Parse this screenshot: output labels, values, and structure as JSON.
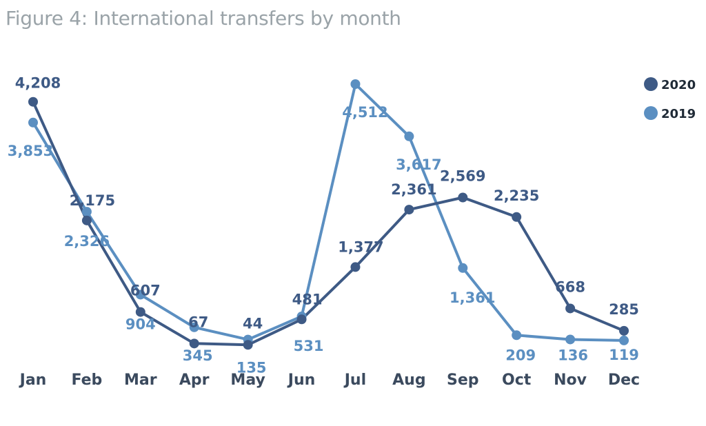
{
  "chart_data": {
    "type": "line",
    "title": "Figure 4: International transfers by month",
    "categories": [
      "Jan",
      "Feb",
      "Mar",
      "Apr",
      "May",
      "Jun",
      "Jul",
      "Aug",
      "Sep",
      "Oct",
      "Nov",
      "Dec"
    ],
    "series": [
      {
        "name": "2020",
        "color": "#3e5a85",
        "values": [
          4208,
          2175,
          607,
          67,
          44,
          481,
          1377,
          2361,
          2569,
          2235,
          668,
          285
        ],
        "labels": [
          "4,208",
          "2,175",
          "607",
          "67",
          "44",
          "481",
          "1,377",
          "2,361",
          "2,569",
          "2,235",
          "668",
          "285"
        ]
      },
      {
        "name": "2019",
        "color": "#5b8fc1",
        "values": [
          3853,
          2326,
          904,
          345,
          135,
          531,
          4512,
          3617,
          1361,
          209,
          136,
          119
        ],
        "labels": [
          "3,853",
          "2,326",
          "904",
          "345",
          "135",
          "531",
          "4,512",
          "3,617",
          "1,361",
          "209",
          "136",
          "119"
        ]
      }
    ],
    "ylim": [
      0,
      4600
    ],
    "grid": false,
    "legend": "top-right"
  }
}
